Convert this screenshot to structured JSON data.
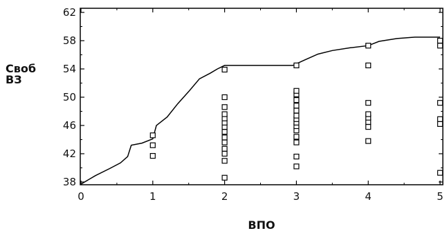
{
  "chart_data": {
    "type": "scatter",
    "xlabel": "ВПО",
    "ylabel_lines": [
      "Своб",
      "ВЗ"
    ],
    "xlim": [
      0,
      5
    ],
    "ylim": [
      38,
      62
    ],
    "x_ticks": [
      0,
      1,
      2,
      3,
      4,
      5
    ],
    "x_tick_labels": [
      "0",
      "1",
      "2",
      "3",
      "4",
      "5"
    ],
    "y_ticks": [
      38,
      42,
      46,
      50,
      54,
      58,
      62
    ],
    "y_tick_labels": [
      "38",
      "42",
      "46",
      "50",
      "54",
      "58",
      "62"
    ],
    "grid": false,
    "legend": "none",
    "series": [
      {
        "type": "scatter",
        "marker": "open-square",
        "points": [
          [
            1,
            41.7
          ],
          [
            1,
            43.2
          ],
          [
            1,
            44.6
          ],
          [
            2,
            38.6
          ],
          [
            2,
            41.0
          ],
          [
            2,
            42.0
          ],
          [
            2,
            42.7
          ],
          [
            2,
            43.6
          ],
          [
            2,
            44.3
          ],
          [
            2,
            45.1
          ],
          [
            2,
            45.8
          ],
          [
            2,
            46.4
          ],
          [
            2,
            47.0
          ],
          [
            2,
            47.6
          ],
          [
            2,
            48.6
          ],
          [
            2,
            50.0
          ],
          [
            2,
            53.9
          ],
          [
            3,
            40.2
          ],
          [
            3,
            41.6
          ],
          [
            3,
            43.6
          ],
          [
            3,
            44.4
          ],
          [
            3,
            45.3
          ],
          [
            3,
            45.9
          ],
          [
            3,
            46.4
          ],
          [
            3,
            46.9
          ],
          [
            3,
            47.4
          ],
          [
            3,
            48.1
          ],
          [
            3,
            48.8
          ],
          [
            3,
            49.6
          ],
          [
            3,
            50.4
          ],
          [
            3,
            50.9
          ],
          [
            3,
            54.5
          ],
          [
            4,
            43.8
          ],
          [
            4,
            45.8
          ],
          [
            4,
            46.5
          ],
          [
            4,
            47.1
          ],
          [
            4,
            47.6
          ],
          [
            4,
            49.2
          ],
          [
            4,
            54.5
          ],
          [
            4,
            57.3
          ],
          [
            5,
            39.3
          ],
          [
            5,
            46.2
          ],
          [
            5,
            46.9
          ],
          [
            5,
            49.2
          ],
          [
            5,
            57.3
          ],
          [
            5,
            58.0
          ]
        ]
      },
      {
        "type": "line",
        "points": [
          [
            0,
            37.7
          ],
          [
            0.2,
            38.9
          ],
          [
            0.4,
            39.9
          ],
          [
            0.55,
            40.7
          ],
          [
            0.65,
            41.6
          ],
          [
            0.7,
            43.2
          ],
          [
            0.85,
            43.5
          ],
          [
            1.0,
            44.1
          ],
          [
            1.05,
            46.0
          ],
          [
            1.2,
            47.2
          ],
          [
            1.35,
            49.1
          ],
          [
            1.5,
            50.8
          ],
          [
            1.65,
            52.6
          ],
          [
            1.8,
            53.4
          ],
          [
            1.9,
            54.0
          ],
          [
            2.0,
            54.5
          ],
          [
            2.5,
            54.5
          ],
          [
            2.95,
            54.5
          ],
          [
            3.1,
            55.2
          ],
          [
            3.3,
            56.1
          ],
          [
            3.5,
            56.6
          ],
          [
            3.75,
            57.0
          ],
          [
            4.0,
            57.3
          ],
          [
            4.15,
            57.9
          ],
          [
            4.4,
            58.3
          ],
          [
            4.65,
            58.5
          ],
          [
            5.0,
            58.5
          ]
        ]
      }
    ]
  }
}
